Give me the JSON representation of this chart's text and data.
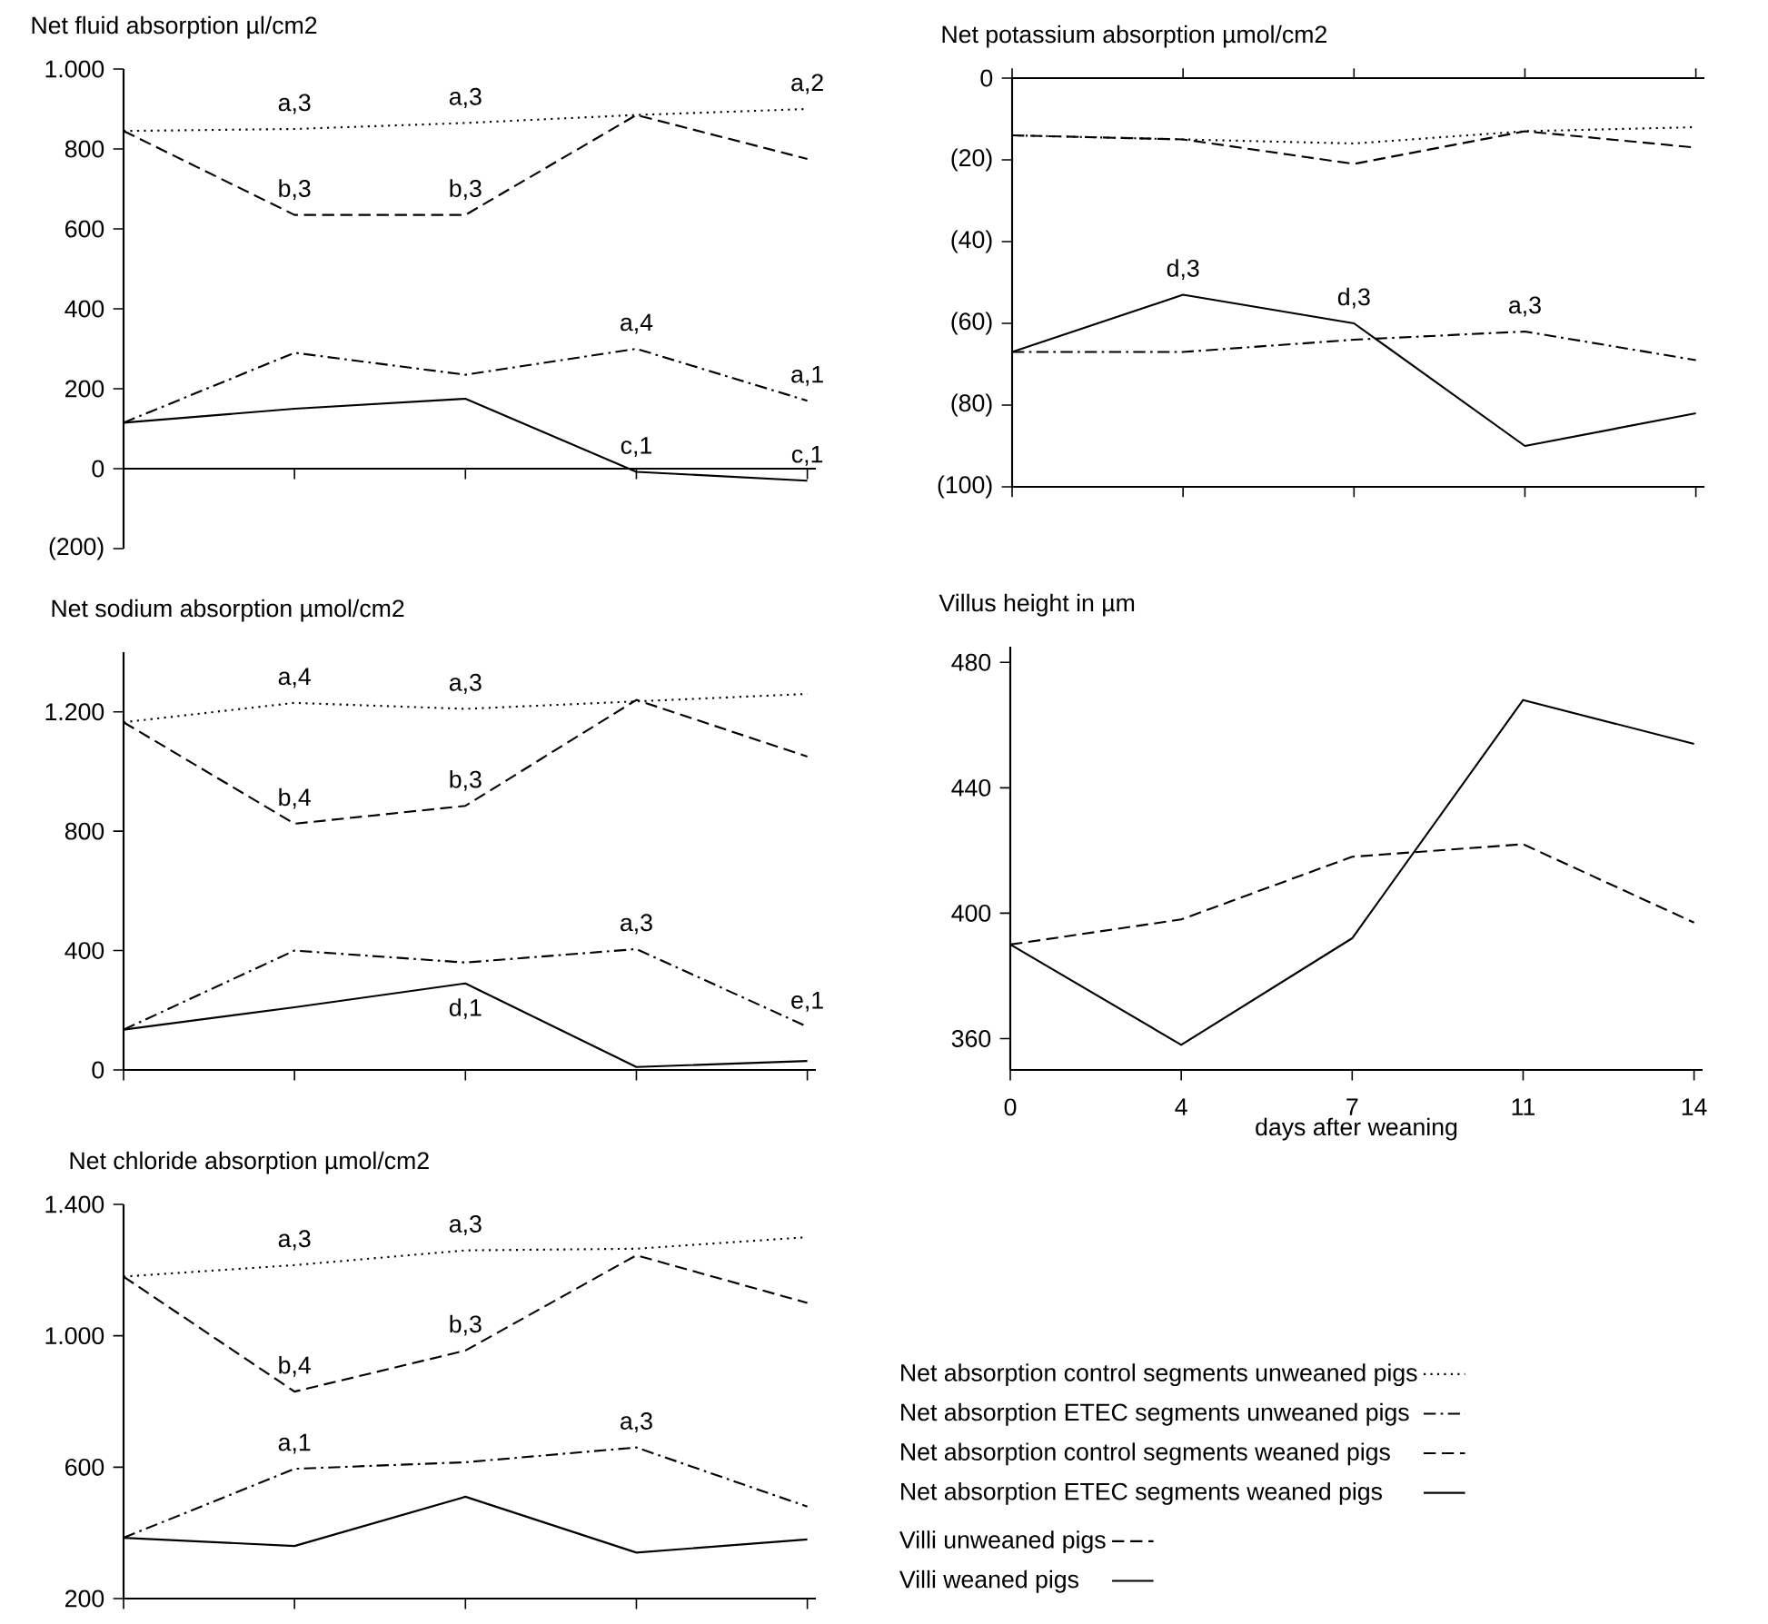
{
  "chart_data": [
    {
      "type": "line",
      "title": "Net fluid absorption µl/cm2",
      "categories": [
        null,
        null,
        null,
        null,
        null
      ],
      "tick_labels": "y",
      "ylim": [
        -200,
        1000
      ],
      "yticks": [
        {
          "value": -200,
          "label": "(200)"
        },
        0,
        200,
        400,
        600,
        800,
        {
          "value": 1000,
          "label": "1.000"
        }
      ],
      "series": [
        {
          "color": "#000000",
          "line_style": "dotted",
          "values": [
            845,
            850,
            865,
            885,
            900
          ]
        },
        {
          "color": "#000000",
          "line_style": "dashdot",
          "values": [
            115,
            290,
            235,
            300,
            170
          ]
        },
        {
          "color": "#000000",
          "line_style": "dashed",
          "values": [
            845,
            635,
            635,
            885,
            775
          ]
        },
        {
          "color": "#000000",
          "line_style": "solid",
          "values": [
            115,
            150,
            175,
            -8,
            -30
          ]
        }
      ],
      "annotations": [
        {
          "text": "a,3",
          "y": 850
        },
        {
          "text": "a,3",
          "y": 865
        },
        {
          "text": "a,2",
          "y": 900
        },
        {
          "text": "b,3",
          "y": 635
        },
        {
          "text": "b,3",
          "y": 635
        },
        {
          "text": "a,4",
          "y": 300
        },
        {
          "text": "a,1",
          "y": 170
        },
        {
          "text": "c,1",
          "y": -8
        },
        {
          "text": "c,1",
          "y": -30
        }
      ]
    },
    {
      "type": "line",
      "title": "Net potassium absorption µmol/cm2",
      "categories": [
        null,
        null,
        null,
        null,
        null
      ],
      "tick_labels": "y",
      "ylim": [
        -100,
        0
      ],
      "yticks": [
        {
          "value": -100,
          "label": "(100)"
        },
        {
          "value": -80,
          "label": "(80)"
        },
        {
          "value": -60,
          "label": "(60)"
        },
        {
          "value": -40,
          "label": "(40)"
        },
        {
          "value": -20,
          "label": "(20)"
        },
        0
      ],
      "series": [
        {
          "color": "#000000",
          "line_style": "dotted",
          "values": [
            -14,
            -15,
            -16,
            -13,
            -12
          ]
        },
        {
          "color": "#000000",
          "line_style": "dashdot",
          "values": [
            -67,
            -67,
            -64,
            -62,
            -69
          ]
        },
        {
          "color": "#000000",
          "line_style": "dashed",
          "values": [
            -14,
            -15,
            -21,
            -13,
            -17
          ]
        },
        {
          "color": "#000000",
          "line_style": "solid",
          "values": [
            -67,
            -53,
            -60,
            -90,
            -82
          ]
        }
      ],
      "annotations": [
        {
          "text": "d,3",
          "y": -53
        },
        {
          "text": "d,3",
          "y": -60
        },
        {
          "text": "a,3",
          "y": -62
        }
      ]
    },
    {
      "type": "line",
      "title": "Net sodium absorption µmol/cm2",
      "categories": [
        null,
        null,
        null,
        null,
        null
      ],
      "tick_labels": "y",
      "ylim": [
        0,
        1400
      ],
      "yticks": [
        0,
        400,
        800,
        {
          "value": 1200,
          "label": "1.200"
        }
      ],
      "series": [
        {
          "color": "#000000",
          "line_style": "dotted",
          "values": [
            1165,
            1230,
            1210,
            1235,
            1260
          ]
        },
        {
          "color": "#000000",
          "line_style": "dashdot",
          "values": [
            135,
            400,
            360,
            405,
            145
          ]
        },
        {
          "color": "#000000",
          "line_style": "dashed",
          "values": [
            1165,
            825,
            885,
            1240,
            1050
          ]
        },
        {
          "color": "#000000",
          "line_style": "solid",
          "values": [
            135,
            210,
            290,
            10,
            30
          ]
        }
      ],
      "annotations": [
        {
          "text": "a,4",
          "y": 1230
        },
        {
          "text": "a,3",
          "y": 1210
        },
        {
          "text": "b,4",
          "y": 825
        },
        {
          "text": "b,3",
          "y": 885
        },
        {
          "text": "a,3",
          "y": 405
        },
        {
          "text": "e,1",
          "y": 145
        },
        {
          "text": "d,1",
          "y": 290
        }
      ]
    },
    {
      "type": "line",
      "title": "Villus height in µm",
      "xlabel": "days after weaning",
      "categories": [
        "0",
        "4",
        "7",
        "11",
        "14"
      ],
      "ylim": [
        350,
        485
      ],
      "yticks": [
        360,
        400,
        440,
        480
      ],
      "legend": "bottom",
      "series": [
        {
          "name": "Villi unweaned pigs",
          "color": "#000000",
          "line_style": "dashed",
          "values": [
            390,
            398,
            418,
            422,
            397
          ]
        },
        {
          "name": "Villi weaned pigs",
          "color": "#000000",
          "line_style": "solid",
          "values": [
            390,
            358,
            392,
            468,
            454
          ]
        }
      ]
    },
    {
      "type": "line",
      "title": "Net chloride absorption µmol/cm2",
      "categories": [
        null,
        null,
        null,
        null,
        null
      ],
      "tick_labels": "y",
      "ylim": [
        200,
        1400
      ],
      "yticks": [
        200,
        600,
        {
          "value": 1000,
          "label": "1.000"
        },
        {
          "value": 1400,
          "label": "1.400"
        }
      ],
      "legend": "right",
      "series": [
        {
          "name": "Net absorption control segments unweaned pigs",
          "color": "#000000",
          "line_style": "dotted",
          "values": [
            1180,
            1215,
            1260,
            1265,
            1300
          ]
        },
        {
          "name": "Net absorption ETEC segments unweaned pigs",
          "color": "#000000",
          "line_style": "dashdot",
          "values": [
            385,
            595,
            615,
            660,
            480
          ]
        },
        {
          "name": "Net absorption control segments weaned pigs",
          "color": "#000000",
          "line_style": "dashed",
          "values": [
            1180,
            830,
            955,
            1245,
            1100
          ]
        },
        {
          "name": "Net absorption ETEC segments weaned pigs",
          "color": "#000000",
          "line_style": "solid",
          "values": [
            385,
            360,
            510,
            340,
            380
          ]
        }
      ],
      "annotations": [
        {
          "text": "a,3",
          "y": 1215
        },
        {
          "text": "a,3",
          "y": 1260
        },
        {
          "text": "b,4",
          "y": 830
        },
        {
          "text": "b,3",
          "y": 955
        },
        {
          "text": "a,1",
          "y": 595
        },
        {
          "text": "a,3",
          "y": 660
        }
      ]
    }
  ]
}
